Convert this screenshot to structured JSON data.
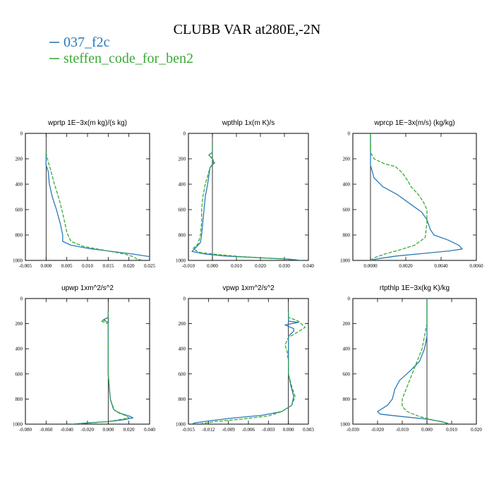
{
  "title": "CLUBB VAR at280E,-2N",
  "legend": [
    {
      "label": "037_f2c",
      "color": "#2a7ab8",
      "dashed": false
    },
    {
      "label": "steffen_code_for_ben2",
      "color": "#3aaa35",
      "dashed": true
    }
  ],
  "chart_data": [
    {
      "type": "line",
      "title": "wprtp  1E−3x(m kg)/(s kg)",
      "xlim": [
        -0.005,
        0.025
      ],
      "ylim": [
        0,
        1000
      ],
      "y_inverted": true,
      "xticks": [
        "-0.005",
        "0.000",
        "0.005",
        "0.010",
        "0.015",
        "0.020",
        "0.025"
      ],
      "yticks": [
        "0",
        "200",
        "400",
        "600",
        "800",
        "1000"
      ],
      "series": [
        {
          "name": "037_f2c",
          "points": [
            [
              0.0,
              150
            ],
            [
              0.0,
              200
            ],
            [
              0.0,
              250
            ],
            [
              0.0005,
              300
            ],
            [
              0.0008,
              400
            ],
            [
              0.0015,
              500
            ],
            [
              0.0025,
              600
            ],
            [
              0.003,
              660
            ],
            [
              0.0035,
              720
            ],
            [
              0.004,
              800
            ],
            [
              0.004,
              850
            ],
            [
              0.006,
              880
            ],
            [
              0.01,
              905
            ],
            [
              0.016,
              930
            ],
            [
              0.021,
              950
            ],
            [
              0.025,
              970
            ]
          ]
        },
        {
          "name": "steffen_code_for_ben2",
          "points": [
            [
              0.0,
              150
            ],
            [
              0.0003,
              200
            ],
            [
              0.0012,
              300
            ],
            [
              0.002,
              400
            ],
            [
              0.003,
              500
            ],
            [
              0.0038,
              600
            ],
            [
              0.0045,
              700
            ],
            [
              0.005,
              780
            ],
            [
              0.006,
              850
            ],
            [
              0.009,
              890
            ],
            [
              0.014,
              920
            ],
            [
              0.019,
              950
            ],
            [
              0.021,
              970
            ],
            [
              0.022,
              990
            ],
            [
              0.0235,
              1000
            ]
          ]
        }
      ]
    },
    {
      "type": "line",
      "title": "wpthlp  1x(m K)/s",
      "xlim": [
        -0.01,
        0.04
      ],
      "ylim": [
        0,
        1000
      ],
      "y_inverted": true,
      "xticks": [
        "-0.010",
        "0.000",
        "0.010",
        "0.020",
        "0.030",
        "0.040"
      ],
      "yticks": [
        "0",
        "200",
        "400",
        "600",
        "800",
        "1000"
      ],
      "series": [
        {
          "name": "037_f2c",
          "points": [
            [
              0.0,
              100
            ],
            [
              0.0,
              150
            ],
            [
              -0.0015,
              170
            ],
            [
              0.0,
              200
            ],
            [
              0.0005,
              230
            ],
            [
              -0.001,
              270
            ],
            [
              -0.002,
              400
            ],
            [
              -0.003,
              500
            ],
            [
              -0.0035,
              600
            ],
            [
              -0.004,
              700
            ],
            [
              -0.0045,
              800
            ],
            [
              -0.005,
              860
            ],
            [
              -0.007,
              900
            ],
            [
              -0.0085,
              930
            ],
            [
              -0.003,
              950
            ],
            [
              0.005,
              965
            ],
            [
              0.02,
              980
            ],
            [
              0.032,
              990
            ],
            [
              0.037,
              1000
            ]
          ]
        },
        {
          "name": "steffen_code_for_ben2",
          "points": [
            [
              0.0,
              100
            ],
            [
              0.0,
              150
            ],
            [
              -0.0015,
              170
            ],
            [
              0.0,
              200
            ],
            [
              0.001,
              230
            ],
            [
              -0.001,
              270
            ],
            [
              -0.003,
              400
            ],
            [
              -0.004,
              500
            ],
            [
              -0.0045,
              600
            ],
            [
              -0.0045,
              700
            ],
            [
              -0.005,
              800
            ],
            [
              -0.006,
              870
            ],
            [
              -0.008,
              905
            ],
            [
              -0.006,
              935
            ],
            [
              0.0,
              950
            ],
            [
              0.012,
              970
            ],
            [
              0.026,
              985
            ],
            [
              0.034,
              995
            ]
          ]
        }
      ]
    },
    {
      "type": "line",
      "title": "wprcp  1E−3x(m/s) (kg/kg)",
      "xlim": [
        -0.001,
        0.006
      ],
      "ylim": [
        0,
        1000
      ],
      "y_inverted": true,
      "xticks": [
        "0.0000",
        "0.0020",
        "0.0040",
        "0.0060"
      ],
      "yticks": [
        "0",
        "200",
        "400",
        "600",
        "800",
        "1000"
      ],
      "series": [
        {
          "name": "037_f2c",
          "points": [
            [
              0.0,
              0
            ],
            [
              0.0,
              150
            ],
            [
              0.0,
              250
            ],
            [
              0.0002,
              350
            ],
            [
              0.0007,
              420
            ],
            [
              0.0015,
              480
            ],
            [
              0.0023,
              560
            ],
            [
              0.0029,
              620
            ],
            [
              0.0032,
              680
            ],
            [
              0.0033,
              720
            ],
            [
              0.0034,
              760
            ],
            [
              0.0036,
              800
            ],
            [
              0.0044,
              840
            ],
            [
              0.005,
              880
            ],
            [
              0.0052,
              910
            ],
            [
              0.0045,
              925
            ],
            [
              0.003,
              945
            ],
            [
              0.0015,
              965
            ],
            [
              0.0005,
              985
            ],
            [
              0.0,
              1000
            ]
          ]
        },
        {
          "name": "steffen_code_for_ben2",
          "points": [
            [
              0.0,
              0
            ],
            [
              0.0,
              150
            ],
            [
              0.0002,
              200
            ],
            [
              0.0008,
              240
            ],
            [
              0.0014,
              260
            ],
            [
              0.0018,
              310
            ],
            [
              0.0021,
              370
            ],
            [
              0.0023,
              420
            ],
            [
              0.0027,
              480
            ],
            [
              0.003,
              540
            ],
            [
              0.0032,
              600
            ],
            [
              0.0032,
              700
            ],
            [
              0.0031,
              820
            ],
            [
              0.0025,
              880
            ],
            [
              0.0016,
              920
            ],
            [
              0.0008,
              950
            ],
            [
              0.0002,
              980
            ],
            [
              0.0,
              1000
            ]
          ]
        }
      ]
    },
    {
      "type": "line",
      "title": "upwp  1xm^2/s^2",
      "xlim": [
        -0.08,
        0.04
      ],
      "ylim": [
        0,
        1000
      ],
      "y_inverted": true,
      "xticks": [
        "-0.080",
        "-0.060",
        "-0.040",
        "-0.020",
        "0.000",
        "0.020",
        "0.040"
      ],
      "yticks": [
        "0",
        "200",
        "400",
        "600",
        "800",
        "1000"
      ],
      "series": [
        {
          "name": "037_f2c",
          "points": [
            [
              0.0,
              100
            ],
            [
              0.0,
              150
            ],
            [
              -0.005,
              170
            ],
            [
              0.0,
              190
            ],
            [
              0.0,
              250
            ],
            [
              0.0,
              400
            ],
            [
              0.0,
              600
            ],
            [
              0.002,
              800
            ],
            [
              0.005,
              880
            ],
            [
              0.01,
              910
            ],
            [
              0.02,
              935
            ],
            [
              0.024,
              950
            ],
            [
              0.015,
              965
            ],
            [
              0.0,
              980
            ],
            [
              -0.02,
              990
            ],
            [
              -0.035,
              1000
            ]
          ]
        },
        {
          "name": "steffen_code_for_ben2",
          "points": [
            [
              0.0,
              100
            ],
            [
              0.0,
              150
            ],
            [
              -0.003,
              170
            ],
            [
              -0.007,
              180
            ],
            [
              0.0,
              200
            ],
            [
              0.0,
              250
            ],
            [
              0.0,
              400
            ],
            [
              0.0,
              600
            ],
            [
              0.002,
              800
            ],
            [
              0.006,
              890
            ],
            [
              0.016,
              930
            ],
            [
              0.02,
              950
            ],
            [
              0.01,
              965
            ],
            [
              0.0,
              980
            ],
            [
              -0.02,
              992
            ],
            [
              -0.028,
              1000
            ]
          ]
        }
      ]
    },
    {
      "type": "line",
      "title": "vpwp  1xm^2/s^2",
      "xlim": [
        -0.015,
        0.003
      ],
      "ylim": [
        0,
        1000
      ],
      "y_inverted": true,
      "xticks": [
        "-0.015",
        "-0.012",
        "-0.009",
        "-0.006",
        "-0.003",
        "0.000",
        "0.003"
      ],
      "yticks": [
        "0",
        "200",
        "400",
        "600",
        "800",
        "1000"
      ],
      "series": [
        {
          "name": "037_f2c",
          "points": [
            [
              0.0,
              100
            ],
            [
              0.0,
              150
            ],
            [
              0.0,
              180
            ],
            [
              0.0015,
              190
            ],
            [
              -0.0005,
              210
            ],
            [
              0.0008,
              240
            ],
            [
              0.0008,
              260
            ],
            [
              0.0,
              300
            ],
            [
              0.0,
              400
            ],
            [
              0.0,
              500
            ],
            [
              0.0,
              600
            ],
            [
              0.0004,
              700
            ],
            [
              0.0008,
              780
            ],
            [
              0.0005,
              850
            ],
            [
              -0.001,
              900
            ],
            [
              -0.004,
              930
            ],
            [
              -0.009,
              955
            ],
            [
              -0.012,
              975
            ],
            [
              -0.014,
              990
            ],
            [
              -0.0145,
              1000
            ]
          ]
        },
        {
          "name": "steffen_code_for_ben2",
          "points": [
            [
              0.0,
              100
            ],
            [
              0.0,
              150
            ],
            [
              0.0015,
              180
            ],
            [
              0.0025,
              230
            ],
            [
              0.001,
              280
            ],
            [
              0.0,
              310
            ],
            [
              -0.0005,
              370
            ],
            [
              -0.0002,
              420
            ],
            [
              0.0,
              500
            ],
            [
              0.0,
              600
            ],
            [
              0.0005,
              700
            ],
            [
              0.001,
              780
            ],
            [
              0.0005,
              850
            ],
            [
              -0.001,
              900
            ],
            [
              -0.003,
              935
            ],
            [
              -0.007,
              960
            ],
            [
              -0.011,
              980
            ],
            [
              -0.0135,
              1000
            ]
          ]
        }
      ]
    },
    {
      "type": "line",
      "title": "rtpthlp  1E−3x(kg K)/kg",
      "xlim": [
        -0.03,
        0.02
      ],
      "ylim": [
        0,
        1000
      ],
      "y_inverted": true,
      "xticks": [
        "-0.030",
        "-0.020",
        "-0.010",
        "0.000",
        "0.010",
        "0.020"
      ],
      "yticks": [
        "0",
        "200",
        "400",
        "600",
        "800",
        "1000"
      ],
      "series": [
        {
          "name": "037_f2c",
          "points": [
            [
              0.0,
              0
            ],
            [
              0.0,
              100
            ],
            [
              0.0,
              200
            ],
            [
              0.0,
              300
            ],
            [
              -0.001,
              400
            ],
            [
              -0.003,
              500
            ],
            [
              -0.007,
              580
            ],
            [
              -0.011,
              650
            ],
            [
              -0.013,
              720
            ],
            [
              -0.014,
              800
            ],
            [
              -0.016,
              850
            ],
            [
              -0.02,
              900
            ],
            [
              -0.019,
              920
            ],
            [
              -0.01,
              940
            ],
            [
              0.0,
              960
            ],
            [
              0.006,
              980
            ],
            [
              0.009,
              1000
            ]
          ]
        },
        {
          "name": "steffen_code_for_ben2",
          "points": [
            [
              0.0,
              0
            ],
            [
              0.0,
              100
            ],
            [
              0.0,
              200
            ],
            [
              -0.001,
              300
            ],
            [
              -0.002,
              400
            ],
            [
              -0.004,
              500
            ],
            [
              -0.006,
              600
            ],
            [
              -0.008,
              700
            ],
            [
              -0.01,
              800
            ],
            [
              -0.01,
              860
            ],
            [
              -0.008,
              900
            ],
            [
              -0.003,
              940
            ],
            [
              0.003,
              970
            ],
            [
              0.008,
              990
            ],
            [
              0.01,
              1000
            ]
          ]
        }
      ]
    }
  ]
}
